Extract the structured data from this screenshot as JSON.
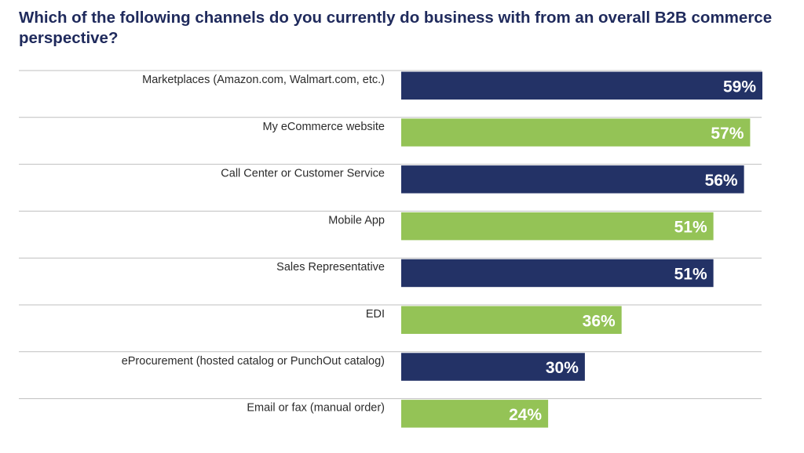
{
  "chart_data": {
    "type": "bar",
    "orientation": "horizontal",
    "title": "Which of the following channels do you currently do business with from an overall B2B commerce perspective?",
    "categories": [
      "Marketplaces (Amazon.com, Walmart.com, etc.)",
      "My eCommerce website",
      "Call Center or Customer Service",
      "Mobile App",
      "Sales Representative",
      "EDI",
      "eProcurement (hosted catalog or PunchOut catalog)",
      "Email or fax (manual order)"
    ],
    "values": [
      59,
      57,
      56,
      51,
      51,
      36,
      30,
      24
    ],
    "value_labels": [
      "59%",
      "57%",
      "56%",
      "51%",
      "51%",
      "36%",
      "30%",
      "24%"
    ],
    "unit": "%",
    "xlim": [
      0,
      59
    ],
    "bar_colors": [
      "#233266",
      "#94c356",
      "#233266",
      "#94c356",
      "#233266",
      "#94c356",
      "#233266",
      "#94c356"
    ],
    "grid": false,
    "legend": "none"
  },
  "colors": {
    "title": "#1f2a5c",
    "navy": "#233266",
    "green": "#94c356",
    "category_text": "#2b2b2b",
    "value_text": "#ffffff",
    "separator": "#bfbfbf"
  }
}
